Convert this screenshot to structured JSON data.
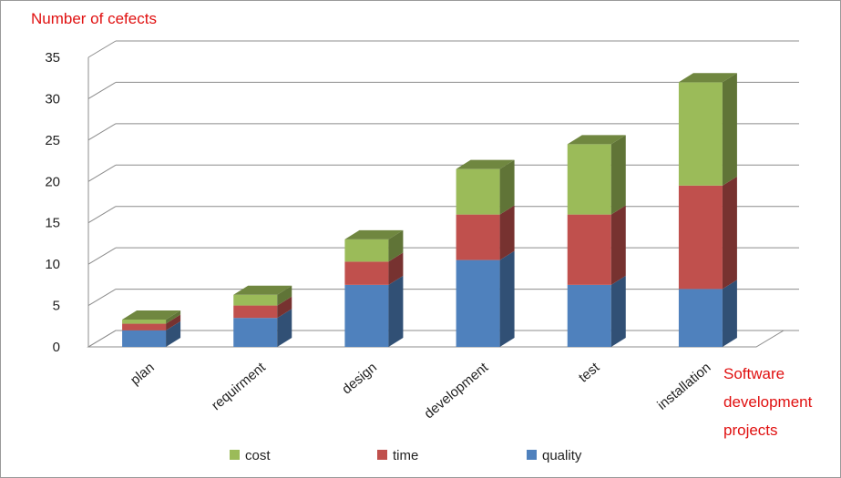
{
  "chart_data": {
    "type": "bar",
    "stacked": true,
    "three_d": true,
    "title": "Number of cefects",
    "xlabel": "Software development projects",
    "ylabel": "",
    "ylim": [
      0,
      35
    ],
    "yticks": [
      "0",
      "5",
      "10",
      "15",
      "20",
      "25",
      "30",
      "35"
    ],
    "grid": true,
    "legend_position": "bottom",
    "categories": [
      "plan",
      "requirment",
      "design",
      "development",
      "test",
      "installation"
    ],
    "series": [
      {
        "name": "quality",
        "values": [
          2,
          3.5,
          7.5,
          10.5,
          7.5,
          7
        ],
        "color": "#4f81bd"
      },
      {
        "name": "time",
        "values": [
          0.8,
          1.5,
          2.8,
          5.5,
          8.5,
          12.5
        ],
        "color": "#c0504d"
      },
      {
        "name": "cost",
        "values": [
          0.5,
          1.3,
          2.7,
          5.5,
          8.5,
          12.5
        ],
        "color": "#9bbb59"
      }
    ],
    "legend_order": [
      "cost",
      "time",
      "quality"
    ]
  }
}
